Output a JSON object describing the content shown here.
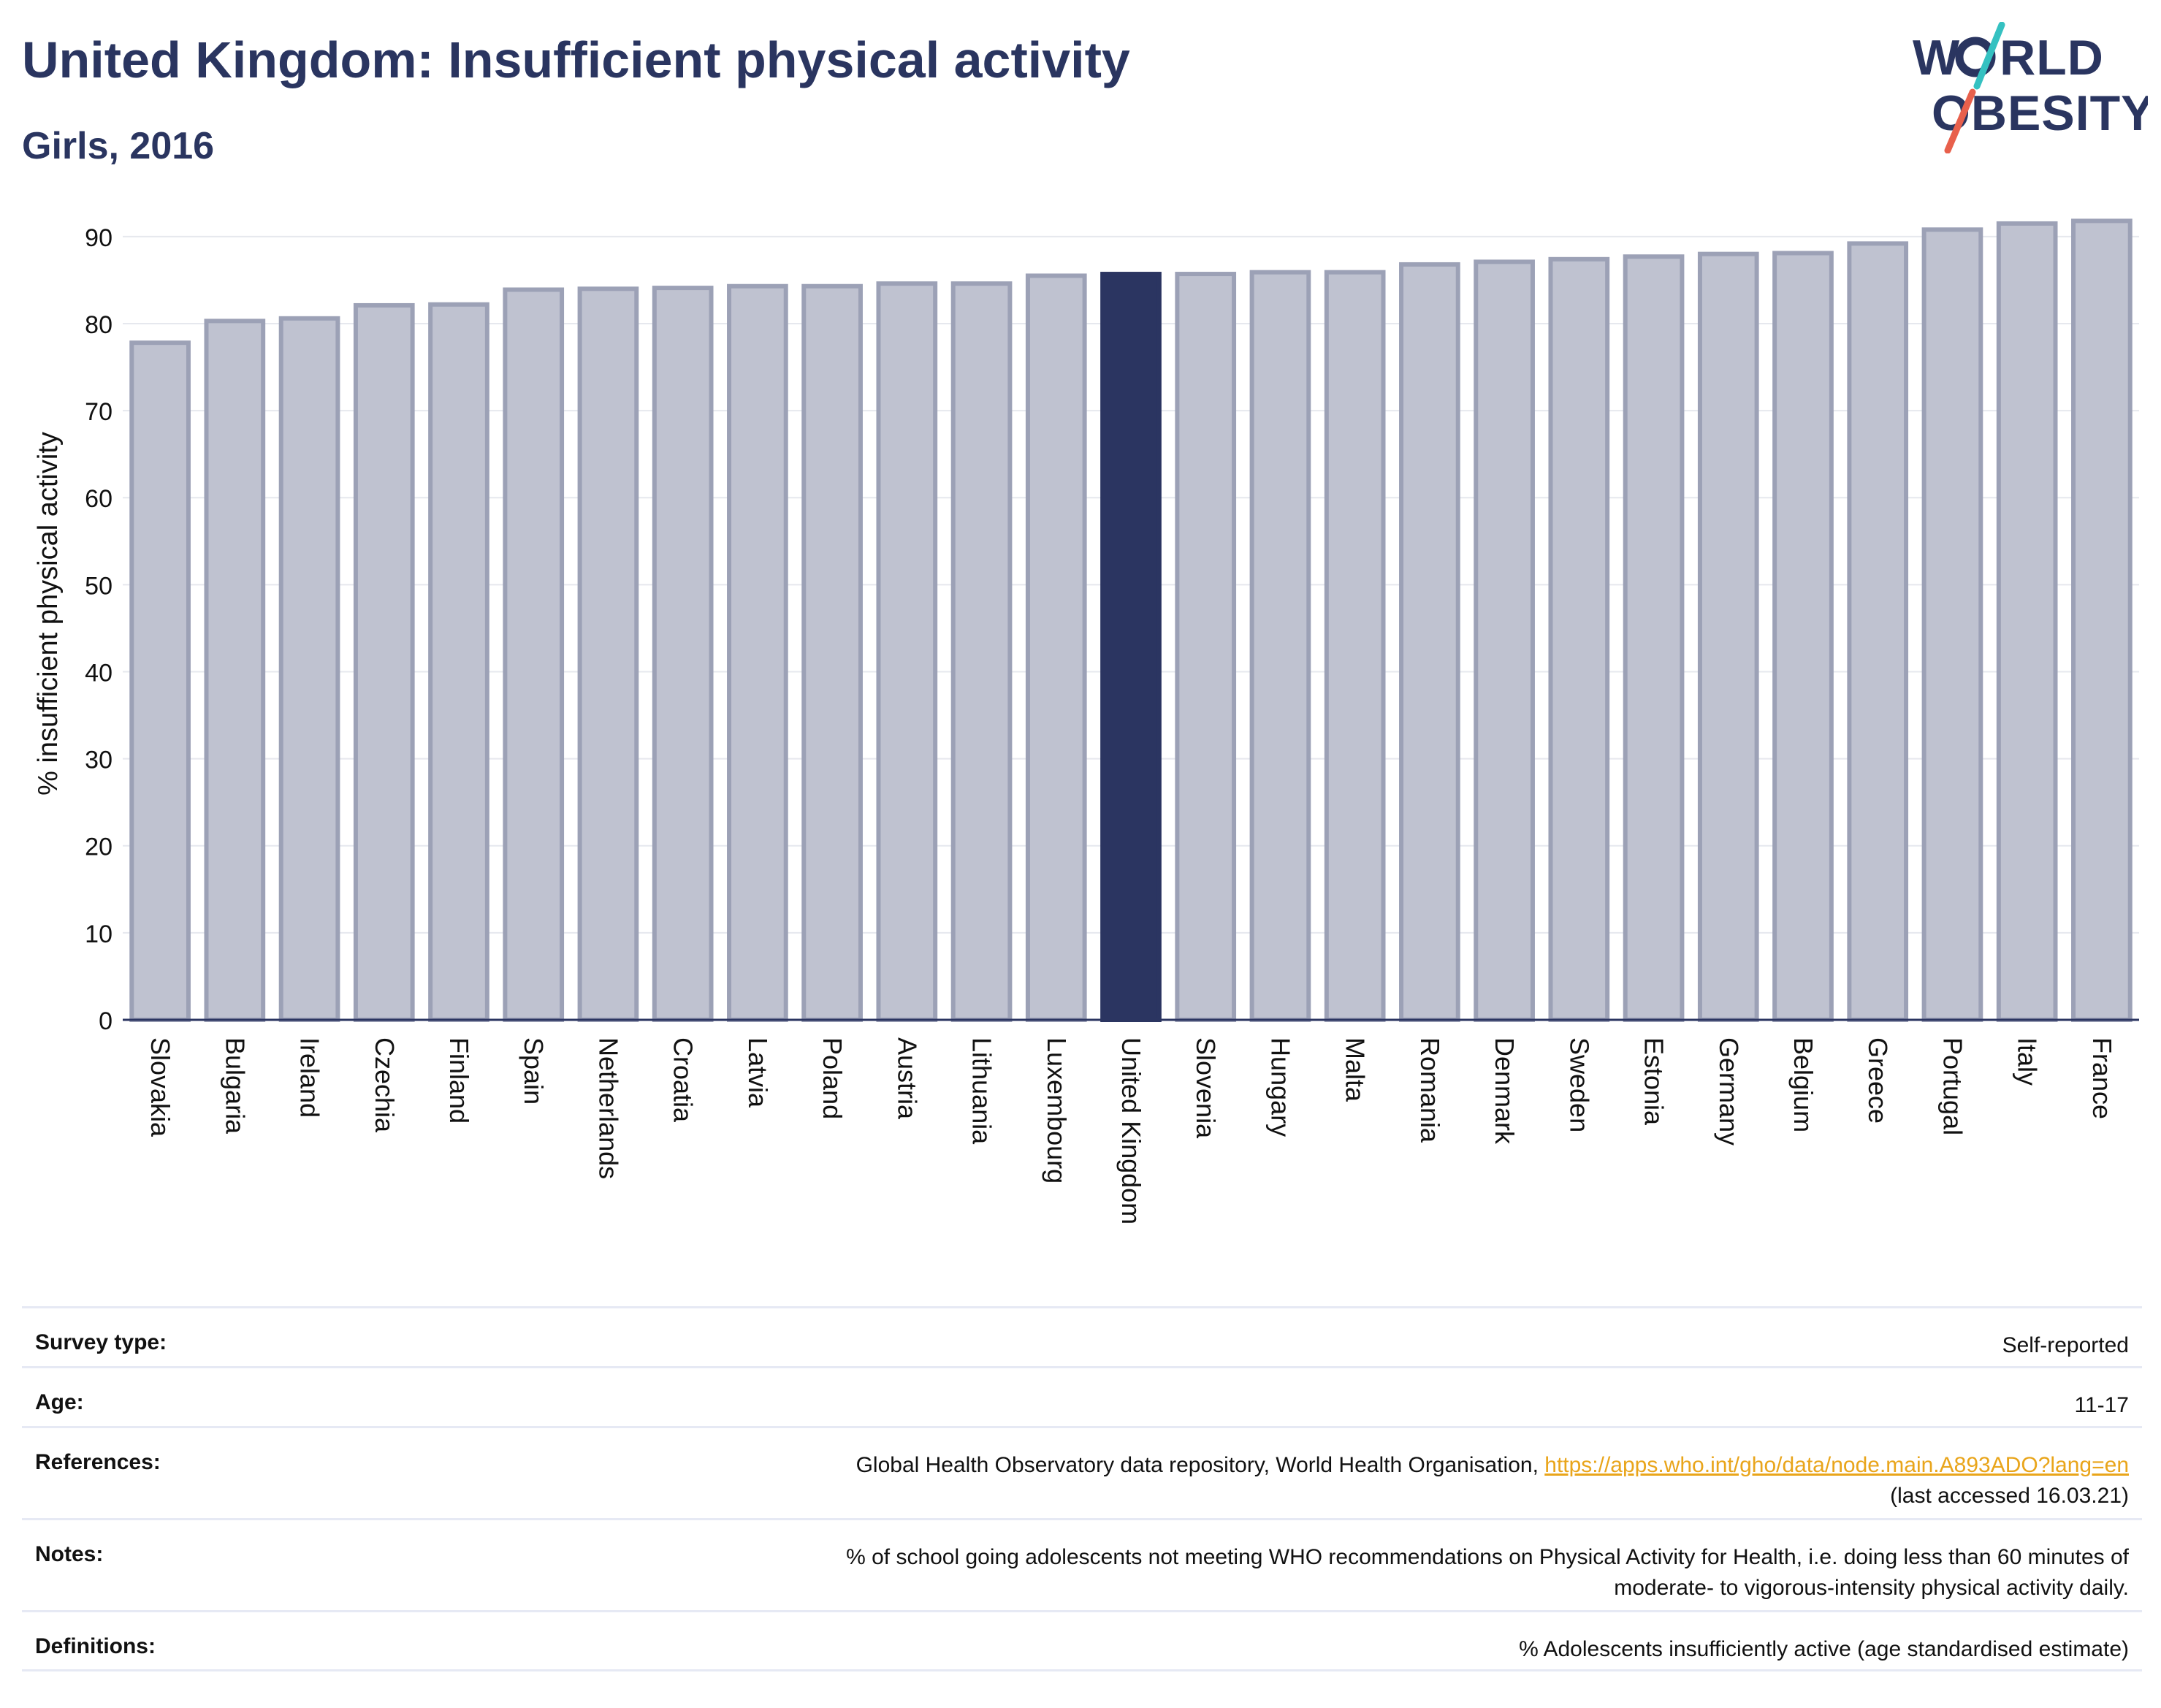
{
  "header": {
    "title": "United Kingdom: Insufficient physical activity",
    "subtitle": "Girls, 2016"
  },
  "logo": {
    "line1": "WORLD",
    "line2": "OBESITY",
    "text_color": "#2a3560",
    "slash_colors": [
      "#35c1c1",
      "#e8604c"
    ]
  },
  "colors": {
    "highlight": "#2b3561",
    "bar_fill": "#bfc2d0",
    "bar_stroke": "#9ca1b6",
    "grid": "#e6e8ee",
    "link": "#e9a51b"
  },
  "chart_data": {
    "type": "bar",
    "title": "",
    "xlabel": "",
    "ylabel": "% insufficient physical activity",
    "ylim": [
      0,
      92
    ],
    "yticks": [
      0,
      10,
      20,
      30,
      40,
      50,
      60,
      70,
      80,
      90
    ],
    "grid": true,
    "highlight": "United Kingdom",
    "categories": [
      "Slovakia",
      "Bulgaria",
      "Ireland",
      "Czechia",
      "Finland",
      "Spain",
      "Netherlands",
      "Croatia",
      "Latvia",
      "Poland",
      "Austria",
      "Lithuania",
      "Luxembourg",
      "United Kingdom",
      "Slovenia",
      "Hungary",
      "Malta",
      "Romania",
      "Denmark",
      "Sweden",
      "Estonia",
      "Germany",
      "Belgium",
      "Greece",
      "Portugal",
      "Italy",
      "France"
    ],
    "values": [
      77.8,
      80.3,
      80.6,
      82.1,
      82.2,
      83.9,
      84.0,
      84.1,
      84.3,
      84.3,
      84.6,
      84.6,
      85.5,
      85.7,
      85.7,
      85.9,
      85.9,
      86.8,
      87.1,
      87.4,
      87.7,
      88.0,
      88.1,
      89.2,
      90.8,
      91.5,
      91.8
    ]
  },
  "info": {
    "survey_type": {
      "label": "Survey type:",
      "value": "Self-reported"
    },
    "age": {
      "label": "Age:",
      "value": "11-17"
    },
    "references": {
      "label": "References:",
      "text": "Global Health Observatory data repository, World Health Organisation,",
      "link": "https://apps.who.int/gho/data/node.main.A893ADO?lang=en",
      "accessed": "(last accessed 16.03.21)"
    },
    "notes": {
      "label": "Notes:",
      "line1": "% of school going adolescents not meeting WHO recommendations on Physical Activity for Health, i.e. doing less than 60 minutes of",
      "line2": "moderate- to vigorous-intensity physical activity daily."
    },
    "definitions": {
      "label": "Definitions:",
      "value": "% Adolescents insufficiently active (age standardised estimate)"
    }
  }
}
